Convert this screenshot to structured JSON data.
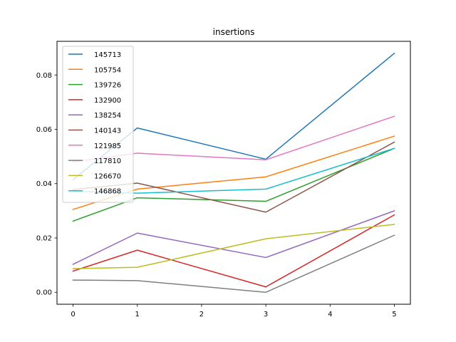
{
  "chart_data": {
    "type": "line",
    "title": "insertions",
    "xlabel": "",
    "ylabel": "",
    "x": [
      0,
      1,
      2,
      3,
      4,
      5
    ],
    "xlim": [
      -0.25,
      5.25
    ],
    "ylim": [
      -0.0044,
      0.0924
    ],
    "xticks": [
      0,
      1,
      2,
      3,
      4,
      5
    ],
    "yticks": [
      0.0,
      0.02,
      0.04,
      0.06,
      0.08
    ],
    "ytick_labels": [
      "0.00",
      "0.02",
      "0.04",
      "0.06",
      "0.08"
    ],
    "grid": false,
    "legend_position": "upper-left",
    "series": [
      {
        "name": "145713",
        "color": "#1f77b4",
        "x": [
          0,
          1,
          3,
          5
        ],
        "values": [
          0.0415,
          0.0605,
          0.049,
          0.088
        ]
      },
      {
        "name": "105754",
        "color": "#ff7f0e",
        "x": [
          0,
          1,
          3,
          5
        ],
        "values": [
          0.0305,
          0.038,
          0.0425,
          0.0575
        ]
      },
      {
        "name": "139726",
        "color": "#2ca02c",
        "x": [
          0,
          1,
          3,
          5
        ],
        "values": [
          0.0262,
          0.0348,
          0.0335,
          0.053
        ]
      },
      {
        "name": "132900",
        "color": "#d62728",
        "x": [
          0,
          1,
          3,
          5
        ],
        "values": [
          0.0078,
          0.0155,
          0.002,
          0.0285
        ]
      },
      {
        "name": "138254",
        "color": "#9467bd",
        "x": [
          0,
          1,
          3,
          5
        ],
        "values": [
          0.0103,
          0.0218,
          0.0128,
          0.03
        ]
      },
      {
        "name": "140143",
        "color": "#8c564b",
        "x": [
          0,
          1,
          3,
          5
        ],
        "values": [
          0.0378,
          0.0402,
          0.0295,
          0.0553
        ]
      },
      {
        "name": "121985",
        "color": "#e377c2",
        "x": [
          0,
          1,
          3,
          5
        ],
        "values": [
          0.048,
          0.0512,
          0.0488,
          0.0648
        ]
      },
      {
        "name": "117810",
        "color": "#7f7f7f",
        "x": [
          0,
          1,
          3,
          5
        ],
        "values": [
          0.0045,
          0.0043,
          0.0,
          0.021
        ]
      },
      {
        "name": "126670",
        "color": "#bcbd22",
        "x": [
          0,
          1,
          3,
          5
        ],
        "values": [
          0.0087,
          0.0092,
          0.0197,
          0.025
        ]
      },
      {
        "name": "146868",
        "color": "#17becf",
        "x": [
          0,
          1,
          3,
          5
        ],
        "values": [
          0.0372,
          0.0365,
          0.038,
          0.053
        ]
      }
    ]
  }
}
